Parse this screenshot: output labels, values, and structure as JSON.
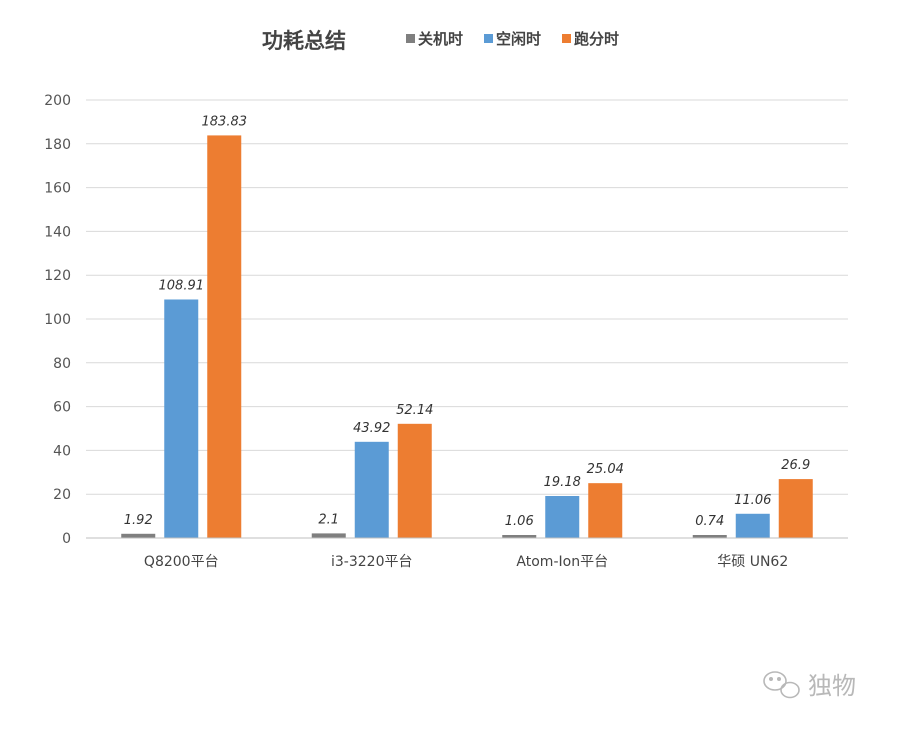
{
  "chart_data": {
    "type": "bar",
    "title": "功耗总结",
    "categories": [
      "Q8200平台",
      "i3-3220平台",
      "Atom-Ion平台",
      "华硕 UN62"
    ],
    "series": [
      {
        "name": "关机时",
        "color": "#7f7f7f",
        "values": [
          1.92,
          2.1,
          1.06,
          0.74
        ]
      },
      {
        "name": "空闲时",
        "color": "#5b9bd5",
        "values": [
          108.91,
          43.92,
          19.18,
          11.06
        ]
      },
      {
        "name": "跑分时",
        "color": "#ed7d31",
        "values": [
          183.83,
          52.14,
          25.04,
          26.9
        ]
      }
    ],
    "data_labels": [
      [
        "1.92",
        "2.1",
        "1.06",
        "0.74"
      ],
      [
        "108.91",
        "43.92",
        "19.18",
        "11.06"
      ],
      [
        "183.83",
        "52.14",
        "25.04",
        "26.9"
      ]
    ],
    "ylim": [
      0,
      200
    ],
    "yticks": [
      0,
      20,
      40,
      60,
      80,
      100,
      120,
      140,
      160,
      180,
      200
    ],
    "grid": true,
    "legend": "top"
  },
  "watermark": {
    "text": "独物",
    "icon": "wechat-icon"
  }
}
